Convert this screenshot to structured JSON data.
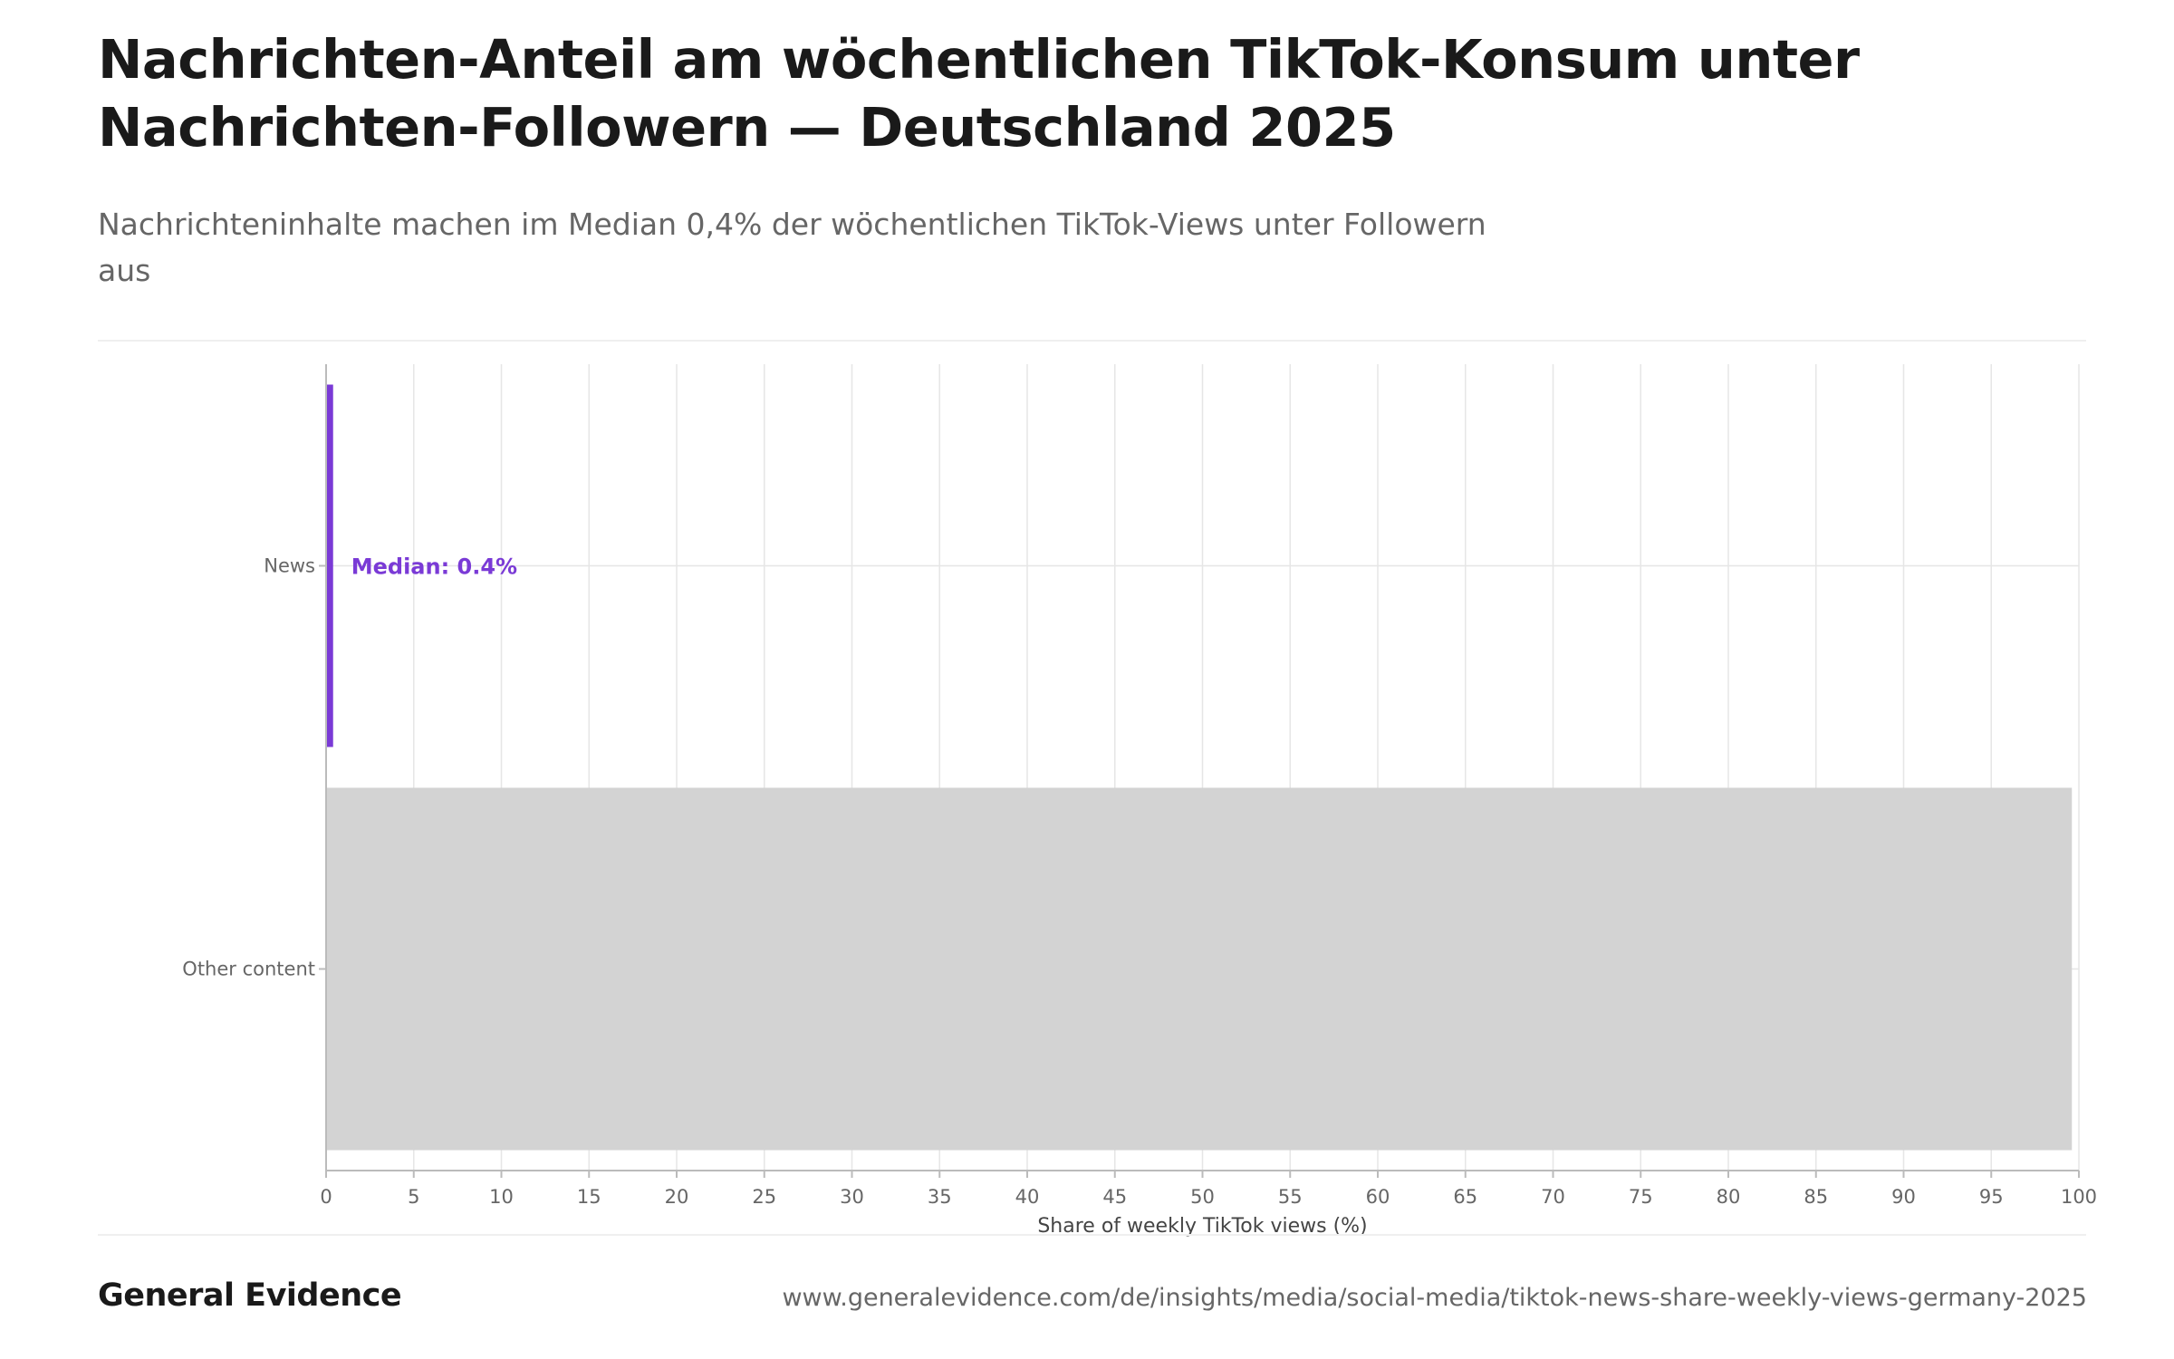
{
  "header": {
    "title": "Nachrichten-Anteil am wöchentlichen TikTok-Konsum unter Nachrichten-Followern — Deutschland 2025",
    "subtitle": "Nachrichteninhalte machen im Median 0,4% der wöchentlichen TikTok-Views unter Followern aus"
  },
  "footer": {
    "brand": "General Evidence",
    "url": "www.generalevidence.com/de/insights/media/social-media/tiktok-news-share-weekly-views-germany-2025"
  },
  "colors": {
    "news": "#7a3ad6",
    "other": "#d3d3d3",
    "grid": "#e6e6e6",
    "axis": "#bbbbbb",
    "tick_text": "#666666"
  },
  "chart_data": {
    "type": "bar",
    "orientation": "horizontal",
    "categories": [
      "News",
      "Other content"
    ],
    "values": [
      0.4,
      99.6
    ],
    "xlabel": "Share of weekly TikTok views (%)",
    "ylabel": "",
    "xlim": [
      0,
      100
    ],
    "xticks": [
      0,
      5,
      10,
      15,
      20,
      25,
      30,
      35,
      40,
      45,
      50,
      55,
      60,
      65,
      70,
      75,
      80,
      85,
      90,
      95,
      100
    ],
    "grid": true,
    "annotations": [
      {
        "category": "News",
        "text": "Median: 0.4%"
      }
    ]
  }
}
